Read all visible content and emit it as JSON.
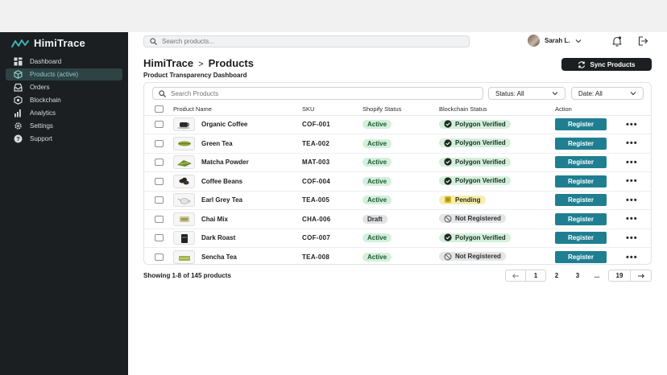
{
  "sidebar": {
    "brand": "HimiTrace",
    "items": [
      {
        "label": "Dashboard",
        "icon": "grid-icon",
        "active": false
      },
      {
        "label": "Products (active)",
        "icon": "package-icon",
        "active": true
      },
      {
        "label": "Orders",
        "icon": "inbox-icon",
        "active": false
      },
      {
        "label": "Blockchain",
        "icon": "blocks-icon",
        "active": false
      },
      {
        "label": "Analytics",
        "icon": "bar-chart-icon",
        "active": false
      },
      {
        "label": "Settings",
        "icon": "gear-icon",
        "active": false
      },
      {
        "label": "Support",
        "icon": "help-icon",
        "active": false
      }
    ]
  },
  "topbar": {
    "search_placeholder": "Search products...",
    "user_name": "Sarah L."
  },
  "page": {
    "crumb_root": "HimiTrace",
    "crumb_sep": ">",
    "crumb_current": "Products",
    "subtitle": "Product Transparency Dashboard",
    "sync_label": "Sync Products"
  },
  "filters": {
    "search_placeholder": "Search Products",
    "status_label": "Status: All",
    "date_label": "Date: All"
  },
  "table": {
    "headers": {
      "name": "Product Name",
      "sku": "SKU",
      "shopify": "Shopify Status",
      "chain": "Blockchain Status",
      "action": "Action"
    },
    "rows": [
      {
        "name": "Organic Coffee",
        "sku": "COF-001",
        "shopify": "Active",
        "chain": "Polygon Verified",
        "chain_kind": "verified",
        "thumb": "coffee-cup"
      },
      {
        "name": "Green Tea",
        "sku": "TEA-002",
        "shopify": "Active",
        "chain": "Polygon Verified",
        "chain_kind": "verified",
        "thumb": "tea-leaves"
      },
      {
        "name": "Matcha Powder",
        "sku": "MAT-003",
        "shopify": "Active",
        "chain": "Polygon Verified",
        "chain_kind": "verified",
        "thumb": "matcha"
      },
      {
        "name": "Coffee Beans",
        "sku": "COF-004",
        "shopify": "Active",
        "chain": "Polygon Verified",
        "chain_kind": "verified",
        "thumb": "beans"
      },
      {
        "name": "Earl Grey Tea",
        "sku": "TEA-005",
        "shopify": "Active",
        "chain": "Pending",
        "chain_kind": "pending",
        "thumb": "teapot"
      },
      {
        "name": "Chai Mix",
        "sku": "CHA-006",
        "shopify": "Draft",
        "chain": "Not Registered",
        "chain_kind": "notreg",
        "thumb": "chai"
      },
      {
        "name": "Dark Roast",
        "sku": "COF-007",
        "shopify": "Active",
        "chain": "Polygon Verified",
        "chain_kind": "verified",
        "thumb": "dark-bag"
      },
      {
        "name": "Sencha Tea",
        "sku": "TEA-008",
        "shopify": "Active",
        "chain": "Not Registered",
        "chain_kind": "notreg",
        "thumb": "sencha"
      }
    ],
    "action_label": "Register",
    "more_label": "•••"
  },
  "footer": {
    "showing": "Showing 1-8 of 145 products",
    "pages": [
      "1",
      "2",
      "3",
      "...",
      "19"
    ],
    "current_page": "1"
  },
  "colors": {
    "sidebar_bg": "#1b1f21",
    "accent": "#1f7f91",
    "active_nav": "#2e4244"
  }
}
